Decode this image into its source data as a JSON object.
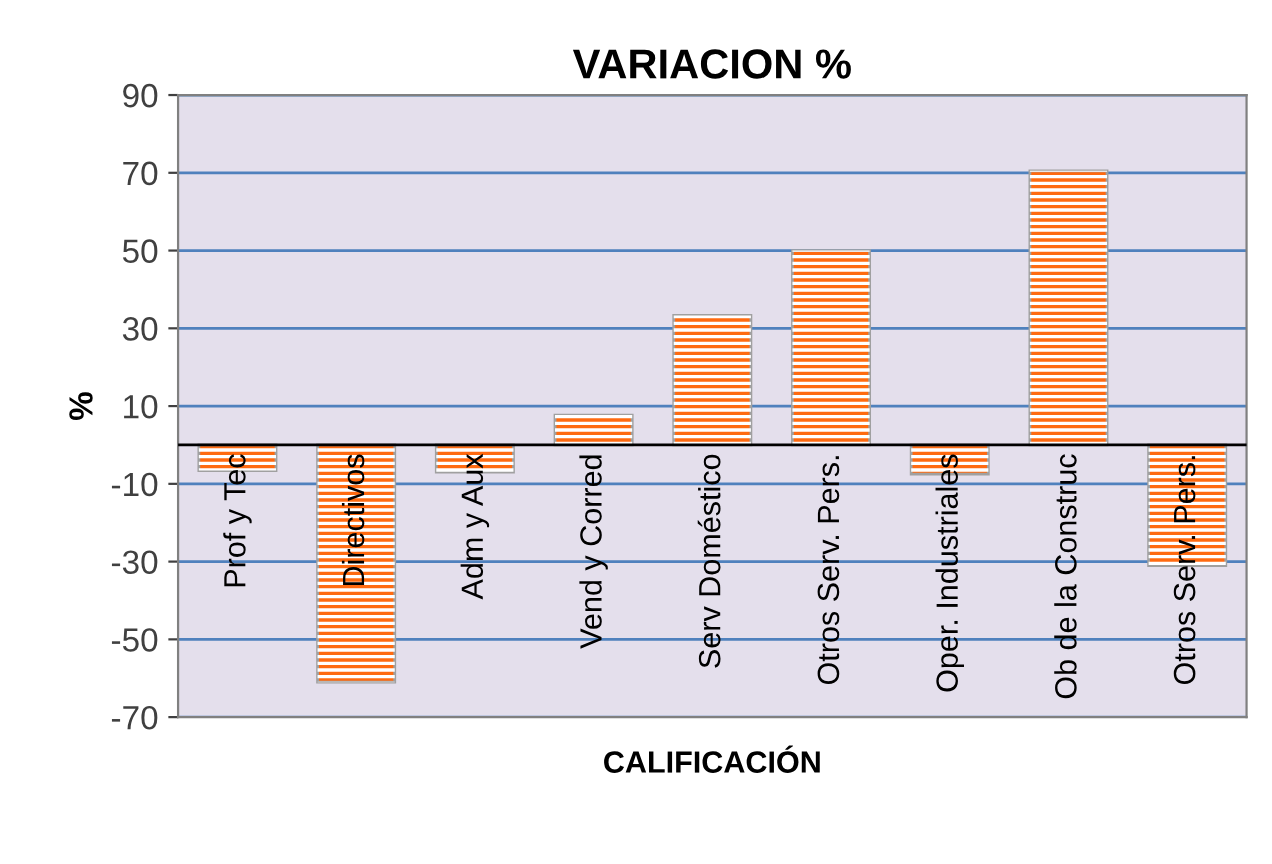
{
  "chart_data": {
    "type": "bar",
    "title": "VARIACION %",
    "xlabel": "CALIFICACIÓN",
    "ylabel": "%",
    "categories": [
      "Prof y Tec",
      "Directivos",
      "Adm y Aux",
      "Vend y Corred",
      "Serv Doméstico",
      "Otros Serv. Pers.",
      "Oper. Industriales",
      "Ob de la Construc",
      "Otros Serv. Pers."
    ],
    "values": [
      -6.6,
      -61,
      -7,
      7.7,
      33.3,
      50,
      -7.5,
      70.5,
      -31
    ],
    "color": "#ff6a10",
    "ylim": [
      -70,
      90
    ],
    "yticks": [
      90,
      70,
      50,
      30,
      10,
      -10,
      -30,
      -50,
      -70
    ],
    "grid": "y"
  }
}
